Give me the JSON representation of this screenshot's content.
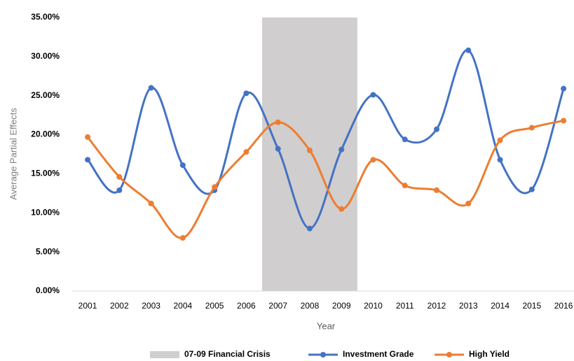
{
  "chart_data": {
    "type": "line",
    "x_label": "Year",
    "y_label": "Average  Partial Effects",
    "categories": [
      "2001",
      "2002",
      "2003",
      "2004",
      "2005",
      "2006",
      "2007",
      "2008",
      "2009",
      "2010",
      "2011",
      "2012",
      "2013",
      "2014",
      "2015",
      "2016"
    ],
    "series": [
      {
        "name": "Investment Grade",
        "color": "#4472c4",
        "values": [
          16.8,
          12.9,
          26.0,
          16.1,
          12.9,
          25.3,
          18.2,
          8.0,
          18.1,
          25.1,
          19.4,
          20.7,
          30.8,
          16.8,
          13.0,
          25.9
        ]
      },
      {
        "name": "High Yield",
        "color": "#ed7d31",
        "values": [
          19.7,
          14.6,
          11.2,
          6.8,
          13.3,
          17.8,
          21.6,
          18.0,
          10.5,
          16.8,
          13.5,
          12.9,
          11.2,
          19.3,
          20.9,
          21.8
        ]
      }
    ],
    "shaded_region": {
      "name": "07-09 Financial Crisis",
      "color": "#d0cece",
      "start": "2007",
      "end": "2009"
    },
    "ylim": [
      0,
      35
    ],
    "yticks": [
      {
        "value": 0,
        "label": "0.00%"
      },
      {
        "value": 5,
        "label": "5.00%"
      },
      {
        "value": 10,
        "label": "10.00%"
      },
      {
        "value": 15,
        "label": "15.00%"
      },
      {
        "value": 20,
        "label": "20.00%"
      },
      {
        "value": 25,
        "label": "25.00%"
      },
      {
        "value": 30,
        "label": "30.00%"
      },
      {
        "value": 35,
        "label": "35.00%"
      }
    ],
    "smooth": true,
    "legend": "bottom"
  }
}
